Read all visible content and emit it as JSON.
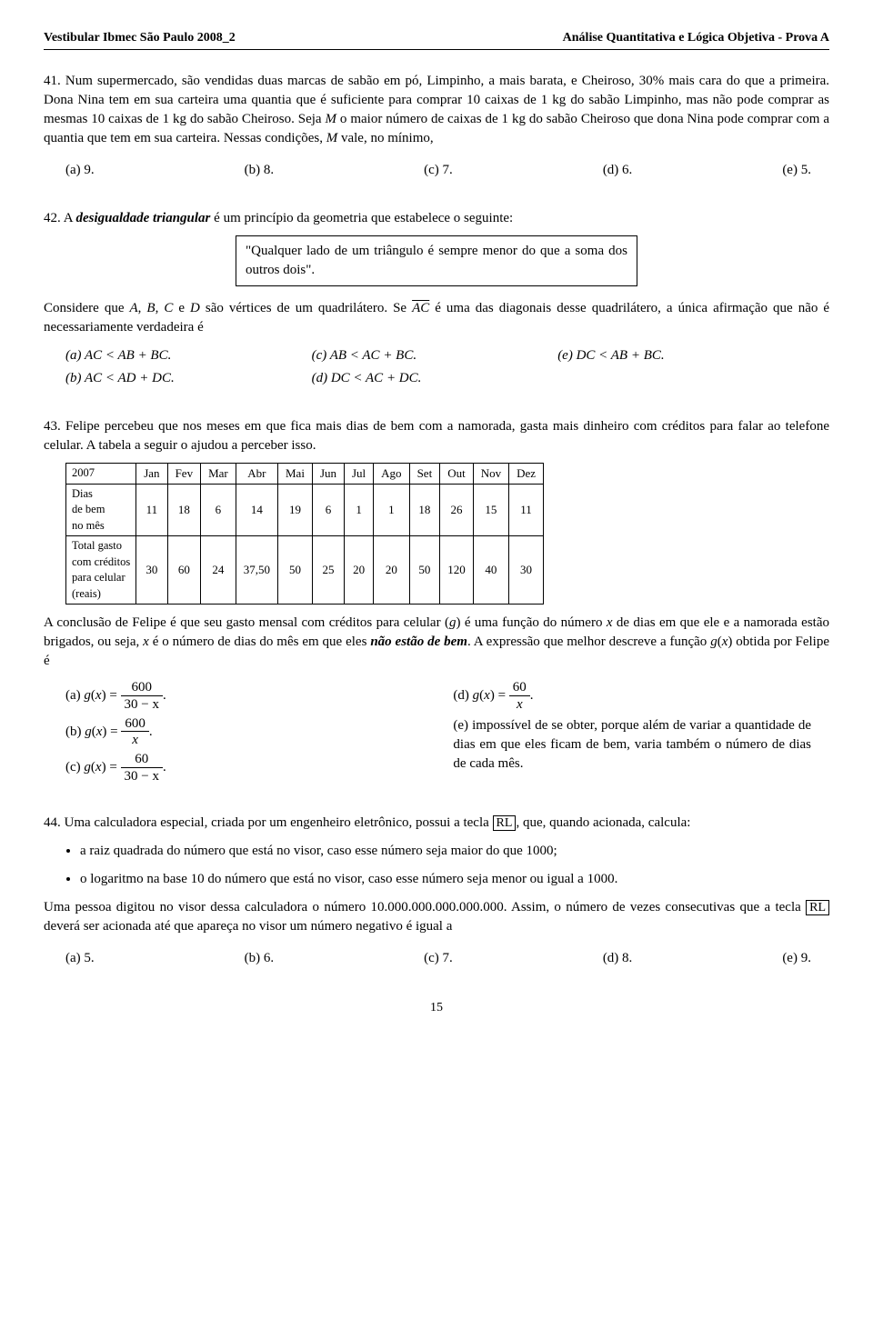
{
  "header": {
    "left": "Vestibular Ibmec São Paulo 2008_2",
    "right": "Análise Quantitativa e Lógica Objetiva - Prova A"
  },
  "q41": {
    "num": "41.",
    "text1": "Num supermercado, são vendidas duas marcas de sabão em pó, Limpinho, a mais barata, e Cheiroso, 30% mais cara do que a primeira. Dona Nina tem em sua carteira uma quantia que é suficiente para comprar 10 caixas de 1 kg do sabão Limpinho, mas não pode comprar as mesmas 10 caixas de 1 kg do sabão Cheiroso. Seja ",
    "text2": " o maior número de caixas de 1 kg do sabão Cheiroso que dona Nina pode comprar com a quantia que tem em sua carteira. Nessas condições, ",
    "text3": " vale, no mínimo,",
    "opts": {
      "a": "(a) 9.",
      "b": "(b) 8.",
      "c": "(c) 7.",
      "d": "(d) 6.",
      "e": "(e) 5."
    }
  },
  "q42": {
    "num": "42.",
    "intro": "A ",
    "termbold": "desigualdade triangular",
    "intro2": " é um princípio da geometria que estabelece o seguinte:",
    "box": "\"Qualquer lado de um triângulo é sempre menor do que a soma dos outros dois\".",
    "p2a": "Considere que ",
    "p2b": " são vértices de um quadrilátero. Se ",
    "p2c": " é uma das diagonais desse quadrilátero, a única afirmação que não é necessariamente verdadeira é",
    "opts": {
      "a": "(a) AC < AB + BC.",
      "b": "(b) AC < AD + DC.",
      "c": "(c) AB < AC + BC.",
      "d": "(d) DC < AC + DC.",
      "e": "(e) DC < AB + BC."
    }
  },
  "q43": {
    "num": "43.",
    "intro": "Felipe percebeu que nos meses em que fica mais dias de bem com a namorada, gasta mais dinheiro com créditos para falar ao telefone celular. A tabela a seguir o ajudou a perceber isso.",
    "table": {
      "head": [
        "2007",
        "Jan",
        "Fev",
        "Mar",
        "Abr",
        "Mai",
        "Jun",
        "Jul",
        "Ago",
        "Set",
        "Out",
        "Nov",
        "Dez"
      ],
      "row1label": "Dias\nde bem\nno mês",
      "row1": [
        "11",
        "18",
        "6",
        "14",
        "19",
        "6",
        "1",
        "1",
        "18",
        "26",
        "15",
        "11"
      ],
      "row2label": "Total gasto\ncom créditos\npara celular\n(reais)",
      "row2": [
        "30",
        "60",
        "24",
        "37,50",
        "50",
        "25",
        "20",
        "20",
        "50",
        "120",
        "40",
        "30"
      ]
    },
    "p2a": "A conclusão de Felipe é que seu gasto mensal com créditos para celular (",
    "p2b": ") é uma função do número ",
    "p2c": " de dias em que ele e a namorada estão brigados, ou seja, ",
    "p2d": " é o número de dias do mês em que eles ",
    "p2bold": "não estão de bem",
    "p2e": ". A expressão que melhor descreve a função ",
    "p2f": " obtida por Felipe é",
    "opta_num": "600",
    "opta_den": "30 − x",
    "optb_num": "600",
    "optb_den": "x",
    "optc_num": "60",
    "optc_den": "30 − x",
    "optd_num": "60",
    "optd_den": "x",
    "opte": "(e) impossível de se obter, porque além de variar a quantidade de dias em que eles ficam de bem, varia também o número de dias de cada mês."
  },
  "q44": {
    "num": "44.",
    "p1a": "Uma calculadora especial, criada por um engenheiro eletrônico, possui a tecla ",
    "rl": "RL",
    "p1b": ", que, quando acionada, calcula:",
    "b1": "a raiz quadrada do número que está no visor, caso esse número seja maior do que 1000;",
    "b2": "o logaritmo na base 10 do número que está no visor, caso esse número seja menor ou igual a 1000.",
    "p2a": "Uma pessoa digitou no visor dessa calculadora o número 10.000.000.000.000.000. Assim, o número de vezes consecutivas que a tecla ",
    "p2b": " deverá ser acionada até que apareça no visor um número negativo é igual a",
    "opts": {
      "a": "(a) 5.",
      "b": "(b) 6.",
      "c": "(c) 7.",
      "d": "(d) 8.",
      "e": "(e) 9."
    }
  },
  "pagenum": "15"
}
